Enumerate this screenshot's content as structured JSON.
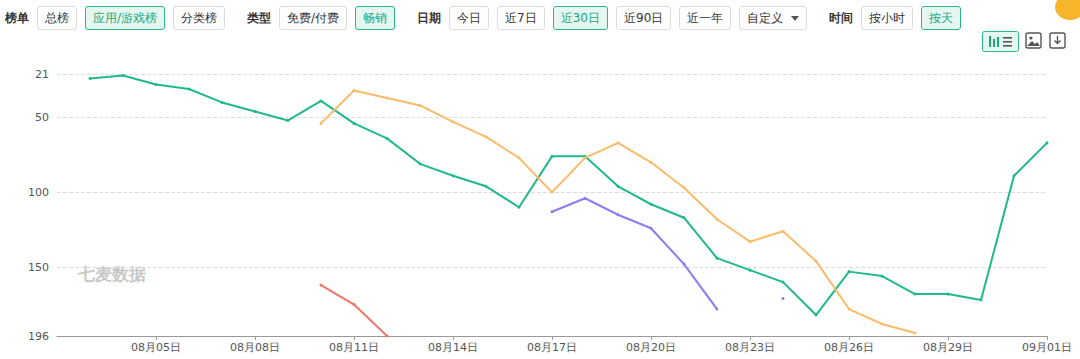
{
  "toolbar": [
    {
      "label": "榜单",
      "options": [
        {
          "text": "总榜"
        },
        {
          "text": "应用/游戏榜",
          "selected": true
        },
        {
          "text": "分类榜"
        }
      ]
    },
    {
      "label": "类型",
      "options": [
        {
          "text": "免费/付费"
        },
        {
          "text": "畅销",
          "selected": true
        }
      ]
    },
    {
      "label": "日期",
      "options": [
        {
          "text": "今日"
        },
        {
          "text": "近7日"
        },
        {
          "text": "近30日",
          "selected": true
        },
        {
          "text": "近90日"
        },
        {
          "text": "近一年"
        },
        {
          "text": "自定义",
          "dropdown": true
        }
      ]
    },
    {
      "label": "时间",
      "options": [
        {
          "text": "按小时"
        },
        {
          "text": "按天",
          "selected": true
        }
      ]
    }
  ],
  "chart_data": {
    "type": "line",
    "categories": [
      null,
      null,
      null,
      "08月05日",
      null,
      null,
      "08月08日",
      null,
      null,
      "08月11日",
      null,
      null,
      "08月14日",
      null,
      null,
      "08月17日",
      null,
      null,
      "08月20日",
      null,
      null,
      "08月23日",
      null,
      null,
      "08月26日",
      null,
      null,
      "08月29日",
      null,
      null,
      "09月01日"
    ],
    "series": [
      {
        "color": "#1fb98b",
        "values": [
          null,
          24,
          22,
          28,
          31,
          40,
          46,
          52,
          39,
          54,
          64,
          81,
          89,
          96,
          110,
          76,
          76,
          96,
          108,
          117,
          144,
          152,
          160,
          182,
          153,
          156,
          168,
          168,
          172,
          89,
          67
        ]
      },
      {
        "color": "#f9bc6b",
        "values": [
          null,
          null,
          null,
          null,
          null,
          null,
          null,
          null,
          54,
          32,
          37,
          42,
          53,
          63,
          77,
          100,
          77,
          67,
          80,
          97,
          118,
          133,
          126,
          146,
          178,
          188,
          194,
          null,
          null,
          null,
          null
        ]
      },
      {
        "color": "#8b7cf1",
        "values": [
          null,
          null,
          null,
          null,
          null,
          null,
          null,
          null,
          null,
          null,
          null,
          null,
          null,
          null,
          null,
          113,
          104,
          115,
          124,
          148,
          178,
          null,
          171,
          null,
          null,
          null,
          null,
          null,
          null,
          null,
          null
        ]
      },
      {
        "color": "#f0776b",
        "values": [
          null,
          null,
          null,
          null,
          null,
          null,
          null,
          null,
          162,
          175,
          196,
          null,
          null,
          null,
          null,
          null,
          null,
          null,
          null,
          null,
          null,
          null,
          null,
          null,
          null,
          null,
          null,
          null,
          null,
          null,
          null
        ]
      }
    ],
    "ylim": [
      196,
      21
    ],
    "yticks": [
      21,
      50,
      100,
      150,
      196
    ],
    "grid": true,
    "marker": "circle",
    "annotations": [
      "七麦数据"
    ]
  }
}
